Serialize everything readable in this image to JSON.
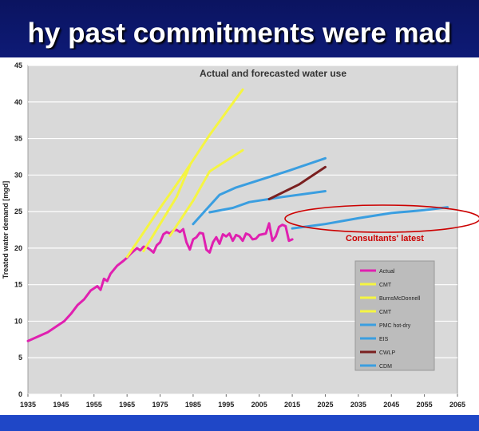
{
  "slide": {
    "title": "hy past commitments were mad"
  },
  "chart_data": {
    "type": "line",
    "title": "Actual and forecasted water use",
    "xlabel": "",
    "ylabel": "Treated water demand [mgd]",
    "xlim": [
      1935,
      2065
    ],
    "ylim": [
      0,
      45
    ],
    "xticks": [
      "1935",
      "1945",
      "1955",
      "1965",
      "1975",
      "1985",
      "1995",
      "2005",
      "2015",
      "2025",
      "2035",
      "2045",
      "2055",
      "2065"
    ],
    "yticks": [
      "0",
      "5",
      "10",
      "15",
      "20",
      "25",
      "30",
      "35",
      "40",
      "45"
    ],
    "grid": true,
    "legend_position": "lower-right",
    "annotation": {
      "text": "Consultants' latest",
      "color": "#cc0000"
    },
    "series": [
      {
        "name": "Actual",
        "color": "#e020b0",
        "points": [
          [
            1935,
            7.3
          ],
          [
            1938,
            7.9
          ],
          [
            1941,
            8.5
          ],
          [
            1944,
            9.4
          ],
          [
            1946,
            10.0
          ],
          [
            1948,
            11.0
          ],
          [
            1950,
            12.2
          ],
          [
            1952,
            13.0
          ],
          [
            1954,
            14.2
          ],
          [
            1956,
            14.8
          ],
          [
            1957,
            14.3
          ],
          [
            1958,
            15.8
          ],
          [
            1959,
            15.5
          ],
          [
            1960,
            16.5
          ],
          [
            1962,
            17.6
          ],
          [
            1964,
            18.3
          ],
          [
            1965,
            18.7
          ],
          [
            1966,
            19.2
          ],
          [
            1967,
            19.6
          ],
          [
            1968,
            20.0
          ],
          [
            1969,
            19.7
          ],
          [
            1970,
            20.2
          ],
          [
            1971,
            20.1
          ],
          [
            1972,
            19.8
          ],
          [
            1973,
            19.4
          ],
          [
            1974,
            20.4
          ],
          [
            1975,
            20.8
          ],
          [
            1976,
            21.9
          ],
          [
            1977,
            22.2
          ],
          [
            1978,
            22.0
          ],
          [
            1979,
            22.4
          ],
          [
            1980,
            22.5
          ],
          [
            1981,
            22.2
          ],
          [
            1982,
            22.6
          ],
          [
            1983,
            20.8
          ],
          [
            1984,
            19.8
          ],
          [
            1985,
            21.2
          ],
          [
            1986,
            21.5
          ],
          [
            1987,
            22.1
          ],
          [
            1988,
            22.0
          ],
          [
            1989,
            19.8
          ],
          [
            1990,
            19.4
          ],
          [
            1991,
            20.8
          ],
          [
            1992,
            21.5
          ],
          [
            1993,
            20.6
          ],
          [
            1994,
            21.9
          ],
          [
            1995,
            21.6
          ],
          [
            1996,
            22.0
          ],
          [
            1997,
            21.0
          ],
          [
            1998,
            21.8
          ],
          [
            1999,
            21.6
          ],
          [
            2000,
            21.0
          ],
          [
            2001,
            22.0
          ],
          [
            2002,
            21.8
          ],
          [
            2003,
            21.2
          ],
          [
            2004,
            21.3
          ],
          [
            2005,
            21.8
          ],
          [
            2006,
            21.9
          ],
          [
            2007,
            22.0
          ],
          [
            2008,
            23.4
          ],
          [
            2009,
            21.0
          ],
          [
            2010,
            21.6
          ],
          [
            2011,
            22.9
          ],
          [
            2012,
            23.2
          ],
          [
            2013,
            23.0
          ],
          [
            2014,
            21.0
          ],
          [
            2015,
            21.2
          ]
        ]
      },
      {
        "name": "CMT",
        "color": "#f5f542",
        "points": [
          [
            1965,
            18.8
          ],
          [
            1975,
            25.5
          ],
          [
            1982,
            30.0
          ],
          [
            1990,
            35.5
          ],
          [
            2000,
            41.7
          ]
        ]
      },
      {
        "name": "BurnsMcDonnell",
        "color": "#f5f542",
        "points": [
          [
            1970,
            19.6
          ],
          [
            1975,
            23.3
          ],
          [
            1980,
            27.0
          ],
          [
            1984,
            31.3
          ]
        ]
      },
      {
        "name": "CMT",
        "color": "#f5f542",
        "points": [
          [
            1978,
            21.7
          ],
          [
            1985,
            26.5
          ],
          [
            1990,
            30.5
          ],
          [
            2000,
            33.4
          ]
        ]
      },
      {
        "name": "PMC hot-dry",
        "color": "#3a9ee0",
        "points": [
          [
            1985,
            23.3
          ],
          [
            1993,
            27.3
          ],
          [
            1998,
            28.3
          ],
          [
            2005,
            29.3
          ],
          [
            2014,
            30.6
          ],
          [
            2025,
            32.3
          ]
        ]
      },
      {
        "name": "EIS",
        "color": "#3a9ee0",
        "points": [
          [
            1990,
            24.9
          ],
          [
            1997,
            25.5
          ],
          [
            2002,
            26.3
          ],
          [
            2012,
            27.0
          ],
          [
            2025,
            27.8
          ]
        ]
      },
      {
        "name": "CWLP",
        "color": "#7a2020",
        "points": [
          [
            2008,
            26.7
          ],
          [
            2017,
            28.7
          ],
          [
            2025,
            31.1
          ]
        ]
      },
      {
        "name": "CDM",
        "color": "#3a9ee0",
        "points": [
          [
            2015,
            22.7
          ],
          [
            2025,
            23.3
          ],
          [
            2035,
            24.1
          ],
          [
            2045,
            24.8
          ],
          [
            2055,
            25.2
          ],
          [
            2062,
            25.6
          ]
        ]
      }
    ]
  }
}
